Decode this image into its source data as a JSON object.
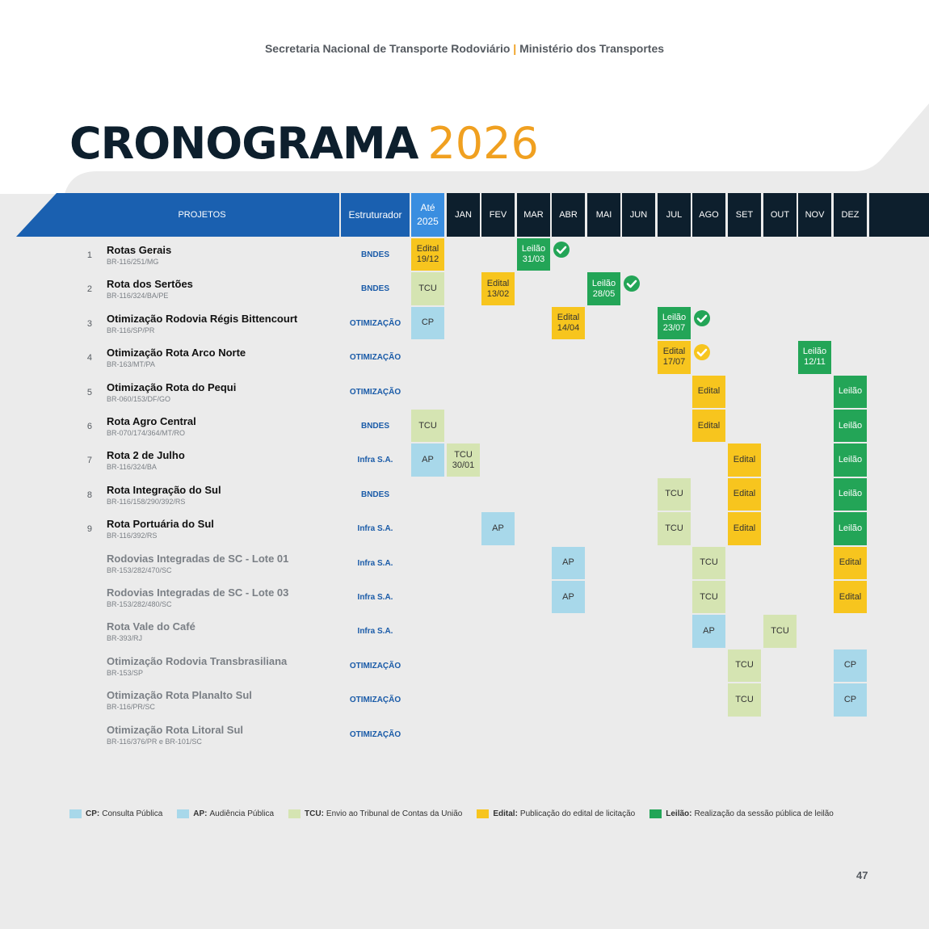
{
  "header": {
    "left": "Secretaria Nacional de Transporte Rodoviário",
    "sep": "|",
    "right": "Ministério dos Transportes"
  },
  "title": {
    "main": "CRONOGRAMA",
    "year": "2026"
  },
  "columns": {
    "projects": "PROJETOS",
    "structurer": "Estruturador",
    "until_line1": "Até",
    "until_line2": "2025",
    "months": [
      "JAN",
      "FEV",
      "MAR",
      "ABR",
      "MAI",
      "JUN",
      "JUL",
      "AGO",
      "SET",
      "OUT",
      "NOV",
      "DEZ"
    ]
  },
  "colors": {
    "edital": "#f7c51e",
    "leilao": "#23a557",
    "tcu": "#d5e4b2",
    "cp": "#a8d8ea",
    "ap": "#a8d8ea",
    "header_dark": "#0d1f2d",
    "header_blue": "#1a60b0"
  },
  "rows": [
    {
      "num": "1",
      "name": "Rotas Gerais",
      "code": "BR-116/251/MG",
      "structurer": "BNDES",
      "active": true,
      "events": [
        {
          "col": 0,
          "type": "edital",
          "l1": "Edital",
          "l2": "19/12"
        },
        {
          "col": 3,
          "type": "leilao",
          "l1": "Leilão",
          "l2": "31/03",
          "check": "green"
        }
      ]
    },
    {
      "num": "2",
      "name": "Rota dos Sertões",
      "code": "BR-116/324/BA/PE",
      "structurer": "BNDES",
      "active": true,
      "events": [
        {
          "col": 0,
          "type": "tcu",
          "l1": "TCU"
        },
        {
          "col": 2,
          "type": "edital",
          "l1": "Edital",
          "l2": "13/02"
        },
        {
          "col": 5,
          "type": "leilao",
          "l1": "Leilão",
          "l2": "28/05",
          "check": "green"
        }
      ]
    },
    {
      "num": "3",
      "name": "Otimização Rodovia Régis Bittencourt",
      "code": "BR-116/SP/PR",
      "structurer": "OTIMIZAÇÃO",
      "active": true,
      "events": [
        {
          "col": 0,
          "type": "cp",
          "l1": "CP"
        },
        {
          "col": 4,
          "type": "edital",
          "l1": "Edital",
          "l2": "14/04"
        },
        {
          "col": 7,
          "type": "leilao",
          "l1": "Leilão",
          "l2": "23/07",
          "check": "green"
        }
      ]
    },
    {
      "num": "4",
      "name": "Otimização Rota Arco Norte",
      "code": "BR-163/MT/PA",
      "structurer": "OTIMIZAÇÃO",
      "active": true,
      "events": [
        {
          "col": 7,
          "type": "edital",
          "l1": "Edital",
          "l2": "17/07",
          "check": "yellow"
        },
        {
          "col": 11,
          "type": "leilao",
          "l1": "Leilão",
          "l2": "12/11"
        }
      ]
    },
    {
      "num": "5",
      "name": "Otimização Rota do Pequi",
      "code": "BR-060/153/DF/GO",
      "structurer": "OTIMIZAÇÃO",
      "active": true,
      "events": [
        {
          "col": 8,
          "type": "edital",
          "l1": "Edital"
        },
        {
          "col": 12,
          "type": "leilao",
          "l1": "Leilão"
        }
      ]
    },
    {
      "num": "6",
      "name": "Rota Agro Central",
      "code": "BR-070/174/364/MT/RO",
      "structurer": "BNDES",
      "active": true,
      "events": [
        {
          "col": 0,
          "type": "tcu",
          "l1": "TCU"
        },
        {
          "col": 8,
          "type": "edital",
          "l1": "Edital"
        },
        {
          "col": 12,
          "type": "leilao",
          "l1": "Leilão"
        }
      ]
    },
    {
      "num": "7",
      "name": "Rota 2 de Julho",
      "code": "BR-116/324/BA",
      "structurer": "Infra S.A.",
      "active": true,
      "events": [
        {
          "col": 0,
          "type": "ap",
          "l1": "AP"
        },
        {
          "col": 1,
          "type": "tcu",
          "l1": "TCU",
          "l2": "30/01"
        },
        {
          "col": 9,
          "type": "edital",
          "l1": "Edital"
        },
        {
          "col": 12,
          "type": "leilao",
          "l1": "Leilão"
        }
      ]
    },
    {
      "num": "8",
      "name": "Rota Integração do Sul",
      "code": "BR-116/158/290/392/RS",
      "structurer": "BNDES",
      "active": true,
      "events": [
        {
          "col": 7,
          "type": "tcu",
          "l1": "TCU"
        },
        {
          "col": 9,
          "type": "edital",
          "l1": "Edital"
        },
        {
          "col": 12,
          "type": "leilao",
          "l1": "Leilão"
        }
      ]
    },
    {
      "num": "9",
      "name": "Rota Portuária do Sul",
      "code": "BR-116/392/RS",
      "structurer": "Infra S.A.",
      "active": true,
      "events": [
        {
          "col": 2,
          "type": "ap",
          "l1": "AP"
        },
        {
          "col": 7,
          "type": "tcu",
          "l1": "TCU"
        },
        {
          "col": 9,
          "type": "edital",
          "l1": "Edital"
        },
        {
          "col": 12,
          "type": "leilao",
          "l1": "Leilão"
        }
      ]
    },
    {
      "num": "",
      "name": "Rodovias Integradas de SC - Lote 01",
      "code": "BR-153/282/470/SC",
      "structurer": "Infra S.A.",
      "active": false,
      "events": [
        {
          "col": 4,
          "type": "ap",
          "l1": "AP"
        },
        {
          "col": 8,
          "type": "tcu",
          "l1": "TCU"
        },
        {
          "col": 12,
          "type": "edital",
          "l1": "Edital"
        }
      ]
    },
    {
      "num": "",
      "name": "Rodovias Integradas de SC - Lote 03",
      "code": "BR-153/282/480/SC",
      "structurer": "Infra S.A.",
      "active": false,
      "events": [
        {
          "col": 4,
          "type": "ap",
          "l1": "AP"
        },
        {
          "col": 8,
          "type": "tcu",
          "l1": "TCU"
        },
        {
          "col": 12,
          "type": "edital",
          "l1": "Edital"
        }
      ]
    },
    {
      "num": "",
      "name": "Rota Vale do Café",
      "code": "BR-393/RJ",
      "structurer": "Infra S.A.",
      "active": false,
      "events": [
        {
          "col": 8,
          "type": "ap",
          "l1": "AP"
        },
        {
          "col": 10,
          "type": "tcu",
          "l1": "TCU"
        }
      ]
    },
    {
      "num": "",
      "name": "Otimização Rodovia Transbrasiliana",
      "code": "BR-153/SP",
      "structurer": "OTIMIZAÇÃO",
      "active": false,
      "events": [
        {
          "col": 9,
          "type": "tcu",
          "l1": "TCU"
        },
        {
          "col": 12,
          "type": "cp",
          "l1": "CP"
        }
      ]
    },
    {
      "num": "",
      "name": "Otimização Rota Planalto Sul",
      "code": "BR-116/PR/SC",
      "structurer": "OTIMIZAÇÃO",
      "active": false,
      "events": [
        {
          "col": 9,
          "type": "tcu",
          "l1": "TCU"
        },
        {
          "col": 12,
          "type": "cp",
          "l1": "CP"
        }
      ]
    },
    {
      "num": "",
      "name": "Otimização Rota Litoral Sul",
      "code": "BR-116/376/PR e BR-101/SC",
      "structurer": "OTIMIZAÇÃO",
      "active": false,
      "events": []
    }
  ],
  "legend": [
    {
      "type": "cp",
      "key": "CP:",
      "text": "Consulta Pública"
    },
    {
      "type": "ap",
      "key": "AP:",
      "text": "Audiência Pública"
    },
    {
      "type": "tcu",
      "key": "TCU:",
      "text": "Envio ao Tribunal de Contas da União"
    },
    {
      "type": "edital",
      "key": "Edital:",
      "text": "Publicação do edital de licitação"
    },
    {
      "type": "leilao",
      "key": "Leilão:",
      "text": "Realização da sessão pública de leilão"
    }
  ],
  "page_number": "47"
}
